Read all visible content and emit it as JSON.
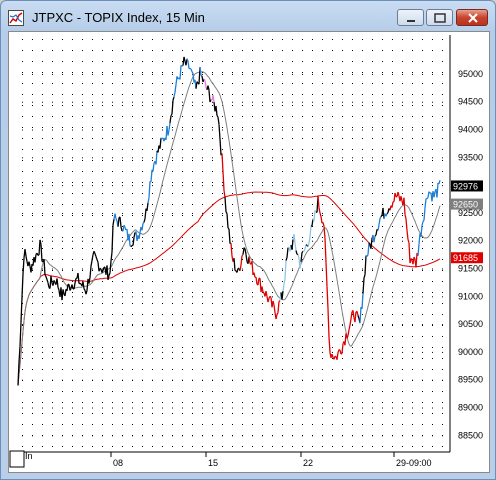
{
  "window": {
    "title": "JTPXC - TOPIX Index, 15 Min",
    "buttons": {
      "minimize": "minimize-icon",
      "maximize": "maximize-icon",
      "close": "close-icon"
    },
    "corner_label": "In"
  },
  "chart_data": {
    "type": "line",
    "title": "",
    "xlabel": "",
    "ylabel": "",
    "x_tick_labels": [
      "08",
      "15",
      "22",
      "29-09:00"
    ],
    "y_tick_labels": [
      "88500",
      "89000",
      "89500",
      "90000",
      "90500",
      "91000",
      "91500",
      "92000",
      "92500",
      "93000",
      "93500",
      "94000",
      "94500",
      "95000"
    ],
    "ylim": [
      88200,
      95700
    ],
    "grid": "dotted",
    "price_labels": [
      {
        "text": "92976",
        "value": 92976,
        "bg": "#000000",
        "fg": "#ffffff"
      },
      {
        "text": "92650",
        "value": 92650,
        "bg": "#7f7f7f",
        "fg": "#ffffff"
      },
      {
        "text": "91685",
        "value": 91685,
        "bg": "#e00000",
        "fg": "#ffffff"
      }
    ],
    "series": [
      {
        "role": "price",
        "color_segments": [
          {
            "color": "#000000",
            "x": [
              0.0,
              0.05,
              0.1,
              0.15,
              0.2,
              0.25,
              0.3
            ],
            "y": [
              91200,
              91500,
              91950,
              91700,
              91500,
              91200,
              91000
            ]
          },
          {
            "color": "#1f7fd6",
            "x": [
              0.3,
              0.33,
              0.36,
              0.39
            ],
            "y": [
              91600,
              92300,
              93000,
              93700
            ]
          },
          {
            "color": "#000000",
            "x": [
              0.39,
              0.42,
              0.45
            ],
            "y": [
              94300,
              95100,
              95000
            ]
          }
        ]
      },
      {
        "role": "moving-average-short",
        "color": "#7f7f7f"
      },
      {
        "role": "moving-average-long",
        "color": "#e00000"
      }
    ],
    "palette": {
      "up": "#1f7fd6",
      "neutral": "#000000",
      "down": "#e00000",
      "down_light": "#f07ad8",
      "up_light": "#8fc6e8",
      "grid": "#000000"
    }
  }
}
